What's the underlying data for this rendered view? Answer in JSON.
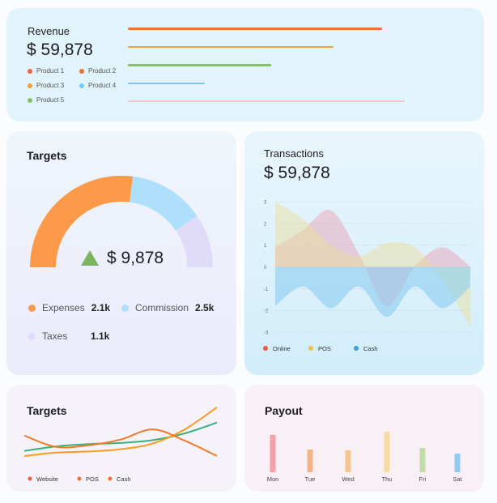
{
  "revenue": {
    "title": "Revenue",
    "amount": "$ 59,878",
    "legend": [
      {
        "label": "Product 1",
        "color": "#f0604a"
      },
      {
        "label": "Product 2",
        "color": "#f07030"
      },
      {
        "label": "Product 3",
        "color": "#f5a030"
      },
      {
        "label": "Product 4",
        "color": "#74c8f8"
      },
      {
        "label": "Product 5",
        "color": "#84c064"
      }
    ],
    "bars": [
      {
        "value": 314,
        "color": "#f07030"
      },
      {
        "value": 254,
        "color": "#f5a030"
      },
      {
        "value": 177,
        "color": "#84c064"
      },
      {
        "value": 95,
        "color": "#74c8f8"
      },
      {
        "value": 342,
        "color": "#f2c4c4"
      }
    ]
  },
  "targets": {
    "title": "Targets",
    "amount": "$ 9,878",
    "items": [
      {
        "label": "Expenses",
        "value": "2.1k",
        "color": "#fd9a4a",
        "fraction": 0.54
      },
      {
        "label": "Commission",
        "value": "2.5k",
        "color": "#aee0fc",
        "fraction": 0.27
      },
      {
        "label": "Taxes",
        "value": "1.1k",
        "color": "#e0dbf8",
        "fraction": 0.19
      }
    ]
  },
  "transactions": {
    "title": "Transactions",
    "amount": "$ 59,878"
  },
  "targets_trend": {
    "title": "Targets"
  },
  "payout": {
    "title": "Payout"
  },
  "chart_data": [
    {
      "type": "area",
      "title": "Transactions",
      "x": [
        0,
        1,
        2,
        3,
        4,
        5,
        6,
        7
      ],
      "ylim": [
        -3,
        3
      ],
      "yticks": [
        "3",
        "2",
        "1",
        "0",
        "-1",
        "-2",
        "-3"
      ],
      "grid": true,
      "legend": "bottom-left",
      "series": [
        {
          "name": "Online",
          "color": "#f05a3c",
          "fill": "rgba(238,150,170,0.42)",
          "values": [
            0.9,
            1.7,
            2.6,
            0.6,
            -1.8,
            0,
            0.9,
            0
          ]
        },
        {
          "name": "POS",
          "color": "#f5c040",
          "fill": "rgba(236,222,150,0.45)",
          "values": [
            3,
            2.2,
            1.0,
            0.5,
            1.1,
            0.9,
            -0.6,
            -2.8
          ]
        },
        {
          "name": "Cash",
          "color": "#3aa0e0",
          "fill": "rgba(140,205,240,0.6)",
          "values": [
            -1.8,
            -0.9,
            -1.9,
            -0.9,
            -2.3,
            -0.9,
            -1.9,
            -0.9
          ]
        }
      ]
    },
    {
      "type": "line",
      "title": "Targets",
      "x": [
        0,
        1,
        2,
        3,
        4,
        5,
        6
      ],
      "ylim": [
        0,
        100
      ],
      "legend": "bottom-left",
      "series": [
        {
          "name": "Website",
          "color": "#3cb07c",
          "dot": "#f05a3c",
          "values": [
            19,
            27,
            31,
            33,
            38,
            50,
            69
          ]
        },
        {
          "name": "POS",
          "color": "#fb9a1e",
          "dot": "#f07030",
          "values": [
            10,
            16,
            18,
            22,
            32,
            57,
            96
          ]
        },
        {
          "name": "Cash",
          "color": "#f27a2a",
          "dot": "#f07030",
          "values": [
            46,
            26,
            29,
            39,
            57,
            37,
            10
          ]
        }
      ]
    },
    {
      "type": "bar",
      "title": "Payout",
      "categories": [
        "Mon",
        "Tue",
        "Wed",
        "Thu",
        "Fri",
        "Sat"
      ],
      "values": [
        46,
        28,
        27,
        50,
        30,
        23
      ],
      "colors": [
        "#f5a0a8",
        "#f2b488",
        "#f6c48c",
        "#f8dba0",
        "#c4dca8",
        "#94caf0"
      ]
    }
  ]
}
